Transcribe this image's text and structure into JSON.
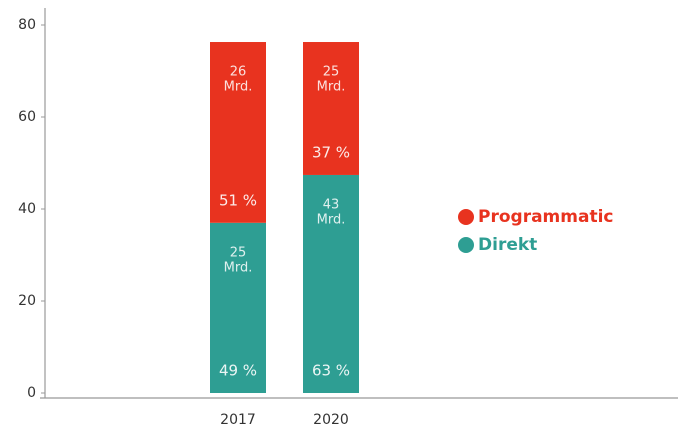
{
  "chart_data": {
    "type": "stacked_bar",
    "categories": [
      "2017",
      "2020"
    ],
    "series": [
      {
        "name": "Direkt",
        "color": "#2e9e93",
        "values": [
          37,
          47.4
        ],
        "amounts": [
          25,
          43
        ],
        "shares": [
          "49 %",
          "63 %"
        ]
      },
      {
        "name": "Programmatic",
        "color": "#e8331f",
        "values": [
          39.3,
          28.9
        ],
        "amounts": [
          26,
          25
        ],
        "shares": [
          "51 %",
          "37 %"
        ]
      }
    ],
    "amount_unit": "Mrd.",
    "ylim": [
      0,
      80
    ],
    "yticks": [
      0,
      20,
      40,
      60,
      80
    ],
    "grid": false
  }
}
